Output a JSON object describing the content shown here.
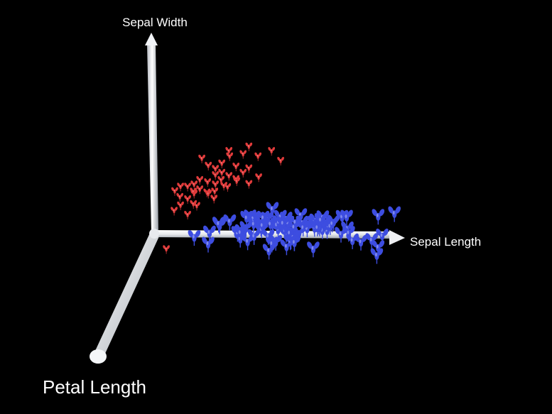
{
  "chart_data": {
    "type": "scatter",
    "dimensions": 3,
    "axes": {
      "x": {
        "label": "Sepal Length"
      },
      "y": {
        "label": "Sepal Width"
      },
      "z": {
        "label": "Petal Length"
      }
    },
    "grid": false,
    "legend": "none",
    "background": "#000000",
    "axis_color": "#f0f2f6",
    "series": [
      {
        "color": "#e03a3a",
        "marker": "small flower glyph",
        "points": [
          [
            4.7,
            4.1,
            1.3
          ],
          [
            4.8,
            3.9,
            1.4
          ],
          [
            4.9,
            3.8,
            1.4
          ],
          [
            5.0,
            4.0,
            1.5
          ],
          [
            5.1,
            4.2,
            1.4
          ],
          [
            5.0,
            3.7,
            1.5
          ],
          [
            4.9,
            3.6,
            1.4
          ],
          [
            4.8,
            3.4,
            1.5
          ],
          [
            4.6,
            3.3,
            1.4
          ],
          [
            4.5,
            3.2,
            1.3
          ],
          [
            4.7,
            3.5,
            1.6
          ],
          [
            4.9,
            3.3,
            1.4
          ],
          [
            5.1,
            3.6,
            1.5
          ],
          [
            5.2,
            3.9,
            1.5
          ],
          [
            5.3,
            4.3,
            1.5
          ],
          [
            5.4,
            4.6,
            1.7
          ],
          [
            5.1,
            4.4,
            1.5
          ],
          [
            5.0,
            3.5,
            1.6
          ],
          [
            4.8,
            3.1,
            1.6
          ],
          [
            4.6,
            3.0,
            1.4
          ],
          [
            4.4,
            2.9,
            1.4
          ],
          [
            4.3,
            3.0,
            1.1
          ],
          [
            4.4,
            3.2,
            1.3
          ],
          [
            4.5,
            2.8,
            1.3
          ],
          [
            4.6,
            3.1,
            1.5
          ],
          [
            4.7,
            3.2,
            1.6
          ],
          [
            4.9,
            3.1,
            1.5
          ],
          [
            5.0,
            3.2,
            1.2
          ],
          [
            5.2,
            3.5,
            1.5
          ],
          [
            5.3,
            3.7,
            1.5
          ],
          [
            5.5,
            4.2,
            1.4
          ],
          [
            5.7,
            4.4,
            1.5
          ],
          [
            5.4,
            3.9,
            1.7
          ],
          [
            5.1,
            3.3,
            1.7
          ],
          [
            4.8,
            3.0,
            1.4
          ],
          [
            4.6,
            2.7,
            1.5
          ],
          [
            4.5,
            2.3,
            1.3
          ],
          [
            4.4,
            2.6,
            1.3
          ],
          [
            4.9,
            2.9,
            1.6
          ],
          [
            5.2,
            3.4,
            1.4
          ],
          [
            5.4,
            3.4,
            1.7
          ],
          [
            5.8,
            4.0,
            1.2
          ],
          [
            5.5,
            3.5,
            1.3
          ],
          [
            4.6,
            2.5,
            1.0
          ],
          [
            4.3,
            2.4,
            1.2
          ],
          [
            4.2,
            1.2,
            1.3
          ]
        ]
      },
      {
        "color": "#3d4de0",
        "marker": "flower glyph",
        "points": [
          [
            4.9,
            2.5,
            4.5
          ],
          [
            5.0,
            2.3,
            3.3
          ],
          [
            5.0,
            2.0,
            3.5
          ],
          [
            5.1,
            2.5,
            3.0
          ],
          [
            5.2,
            2.7,
            3.9
          ],
          [
            5.4,
            3.0,
            4.5
          ],
          [
            5.5,
            2.3,
            4.0
          ],
          [
            5.5,
            2.4,
            3.8
          ],
          [
            5.6,
            2.9,
            3.6
          ],
          [
            5.6,
            3.0,
            4.1
          ],
          [
            5.7,
            2.6,
            3.5
          ],
          [
            5.7,
            2.8,
            4.1
          ],
          [
            5.8,
            2.7,
            4.1
          ],
          [
            5.8,
            2.6,
            4.0
          ],
          [
            5.9,
            3.0,
            4.2
          ],
          [
            5.9,
            3.2,
            4.8
          ],
          [
            6.0,
            2.2,
            4.0
          ],
          [
            6.0,
            2.9,
            4.5
          ],
          [
            6.1,
            2.8,
            4.7
          ],
          [
            6.1,
            3.0,
            4.6
          ],
          [
            6.2,
            2.2,
            4.5
          ],
          [
            6.2,
            2.9,
            4.3
          ],
          [
            6.3,
            2.3,
            4.4
          ],
          [
            6.3,
            2.5,
            4.9
          ],
          [
            6.4,
            2.9,
            4.3
          ],
          [
            6.4,
            3.2,
            4.5
          ],
          [
            6.5,
            2.8,
            4.6
          ],
          [
            6.6,
            2.9,
            4.6
          ],
          [
            6.6,
            3.0,
            4.4
          ],
          [
            6.7,
            3.1,
            4.4
          ],
          [
            6.7,
            3.0,
            5.0
          ],
          [
            6.8,
            2.8,
            4.8
          ],
          [
            6.9,
            3.1,
            4.9
          ],
          [
            7.0,
            3.2,
            4.7
          ],
          [
            6.3,
            3.3,
            6.0
          ],
          [
            5.8,
            2.7,
            5.1
          ],
          [
            7.1,
            3.0,
            5.9
          ],
          [
            6.3,
            2.9,
            5.6
          ],
          [
            6.5,
            3.0,
            5.8
          ],
          [
            7.6,
            3.0,
            6.6
          ],
          [
            7.3,
            2.9,
            6.3
          ],
          [
            6.7,
            2.5,
            5.8
          ],
          [
            7.2,
            3.6,
            6.1
          ],
          [
            6.4,
            2.7,
            5.3
          ],
          [
            6.8,
            3.0,
            5.5
          ],
          [
            5.7,
            2.5,
            5.0
          ],
          [
            6.4,
            3.2,
            5.3
          ],
          [
            7.7,
            3.8,
            6.7
          ],
          [
            7.7,
            2.6,
            6.9
          ],
          [
            6.0,
            2.2,
            5.0
          ],
          [
            6.9,
            3.2,
            5.7
          ],
          [
            5.6,
            2.8,
            4.9
          ],
          [
            7.7,
            2.8,
            6.7
          ],
          [
            6.3,
            2.7,
            4.9
          ],
          [
            6.7,
            3.3,
            5.7
          ],
          [
            7.2,
            3.2,
            6.0
          ],
          [
            6.2,
            2.8,
            4.8
          ],
          [
            6.1,
            3.0,
            4.9
          ],
          [
            6.4,
            2.8,
            5.6
          ],
          [
            7.2,
            3.0,
            5.8
          ],
          [
            7.4,
            2.8,
            6.1
          ],
          [
            7.9,
            3.8,
            6.4
          ],
          [
            6.4,
            2.8,
            5.6
          ],
          [
            6.3,
            2.8,
            5.1
          ],
          [
            6.1,
            2.6,
            5.6
          ],
          [
            7.7,
            3.0,
            6.1
          ],
          [
            6.3,
            3.4,
            5.6
          ],
          [
            6.4,
            3.1,
            5.5
          ],
          [
            6.0,
            3.0,
            4.8
          ],
          [
            6.9,
            3.1,
            5.4
          ],
          [
            6.7,
            3.1,
            5.6
          ],
          [
            6.9,
            3.1,
            5.1
          ],
          [
            5.8,
            2.7,
            5.1
          ],
          [
            6.8,
            3.2,
            5.9
          ],
          [
            6.7,
            3.3,
            5.7
          ],
          [
            6.7,
            3.0,
            5.2
          ],
          [
            6.3,
            2.5,
            5.0
          ],
          [
            6.5,
            3.0,
            5.2
          ],
          [
            6.2,
            3.4,
            5.4
          ],
          [
            5.9,
            3.0,
            5.1
          ],
          [
            5.5,
            2.5,
            4.0
          ],
          [
            5.5,
            2.6,
            4.4
          ],
          [
            6.1,
            3.0,
            4.6
          ],
          [
            5.8,
            2.6,
            4.0
          ],
          [
            5.0,
            2.3,
            3.3
          ],
          [
            5.6,
            2.7,
            4.2
          ],
          [
            5.7,
            3.0,
            4.2
          ],
          [
            5.7,
            2.9,
            4.2
          ],
          [
            6.2,
            2.9,
            4.3
          ],
          [
            5.1,
            2.5,
            3.0
          ],
          [
            5.7,
            2.8,
            4.1
          ],
          [
            6.0,
            2.7,
            5.1
          ],
          [
            5.4,
            3.0,
            4.5
          ],
          [
            6.0,
            3.4,
            4.5
          ],
          [
            6.7,
            3.1,
            4.7
          ],
          [
            6.3,
            2.3,
            4.4
          ],
          [
            5.6,
            3.0,
            4.1
          ],
          [
            5.5,
            2.5,
            4.0
          ],
          [
            6.1,
            2.8,
            4.0
          ],
          [
            5.8,
            2.7,
            3.9
          ]
        ]
      }
    ]
  }
}
